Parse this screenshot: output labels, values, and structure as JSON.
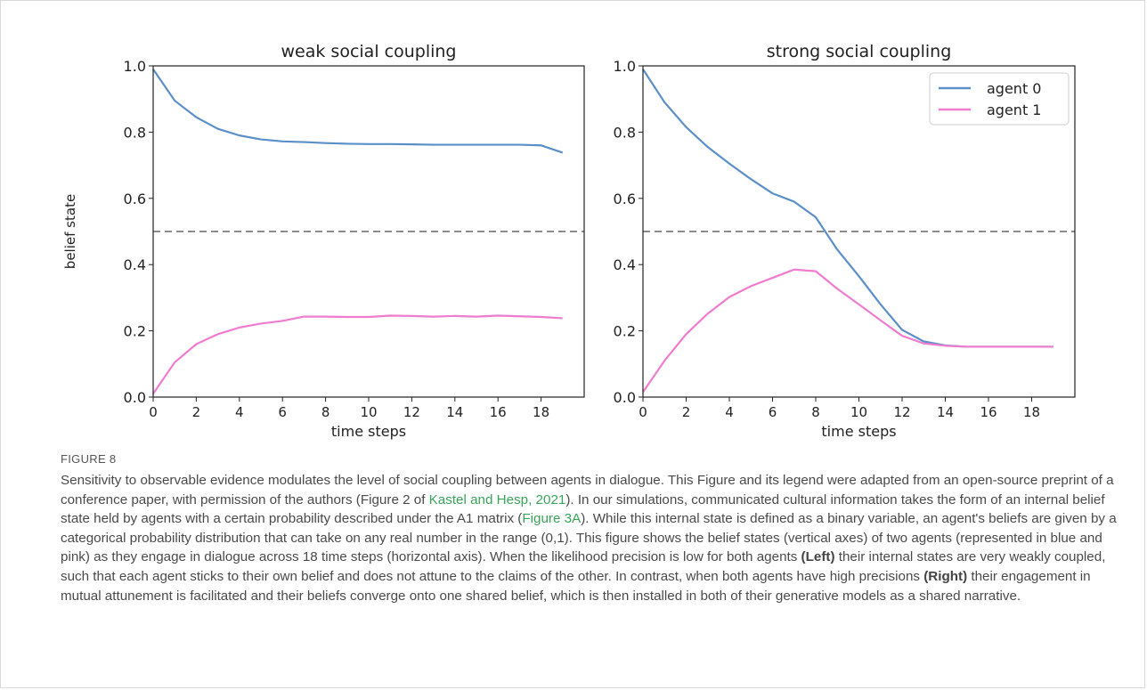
{
  "chart_data": [
    {
      "type": "line",
      "title": "weak social coupling",
      "xlabel": "time steps",
      "ylabel": "belief state",
      "xlim": [
        0,
        20
      ],
      "ylim": [
        0,
        1
      ],
      "xticks": [
        "0",
        "2",
        "4",
        "6",
        "8",
        "10",
        "12",
        "14",
        "16",
        "18"
      ],
      "yticks": [
        "0.0",
        "0.2",
        "0.4",
        "0.6",
        "0.8",
        "1.0"
      ],
      "reference_line": 0.5,
      "x": [
        0,
        1,
        2,
        3,
        4,
        5,
        6,
        7,
        8,
        9,
        10,
        11,
        12,
        13,
        14,
        15,
        16,
        17,
        18,
        19
      ],
      "series": [
        {
          "name": "agent 0",
          "color": "#5b8fc7",
          "values": [
            0.99,
            0.895,
            0.845,
            0.81,
            0.79,
            0.778,
            0.772,
            0.77,
            0.767,
            0.765,
            0.764,
            0.764,
            0.763,
            0.762,
            0.762,
            0.762,
            0.762,
            0.762,
            0.76,
            0.738
          ]
        },
        {
          "name": "agent 1",
          "color": "#f07ccf",
          "values": [
            0.01,
            0.105,
            0.16,
            0.19,
            0.21,
            0.222,
            0.23,
            0.243,
            0.243,
            0.242,
            0.242,
            0.246,
            0.245,
            0.243,
            0.245,
            0.243,
            0.246,
            0.244,
            0.242,
            0.238
          ]
        }
      ],
      "legend": false
    },
    {
      "type": "line",
      "title": "strong social coupling",
      "xlabel": "time steps",
      "ylabel": "",
      "xlim": [
        0,
        20
      ],
      "ylim": [
        0,
        1
      ],
      "xticks": [
        "0",
        "2",
        "4",
        "6",
        "8",
        "10",
        "12",
        "14",
        "16",
        "18"
      ],
      "yticks": [
        "0.0",
        "0.2",
        "0.4",
        "0.6",
        "0.8",
        "1.0"
      ],
      "reference_line": 0.5,
      "x": [
        0,
        1,
        2,
        3,
        4,
        5,
        6,
        7,
        8,
        9,
        10,
        11,
        12,
        13,
        14,
        15,
        16,
        17,
        18,
        19
      ],
      "series": [
        {
          "name": "agent 0",
          "color": "#5b8fc7",
          "values": [
            0.99,
            0.89,
            0.815,
            0.755,
            0.705,
            0.658,
            0.615,
            0.59,
            0.543,
            0.445,
            0.365,
            0.28,
            0.203,
            0.168,
            0.156,
            0.152,
            0.152,
            0.152,
            0.152,
            0.152
          ]
        },
        {
          "name": "agent 1",
          "color": "#f07ccf",
          "values": [
            0.015,
            0.11,
            0.19,
            0.252,
            0.302,
            0.335,
            0.36,
            0.385,
            0.38,
            0.327,
            0.28,
            0.232,
            0.185,
            0.162,
            0.155,
            0.152,
            0.152,
            0.152,
            0.152,
            0.152
          ]
        }
      ],
      "legend": true,
      "legend_position": "top-right"
    }
  ],
  "caption": {
    "label": "FIGURE 8",
    "p1": "Sensitivity to observable evidence modulates the level of social coupling between agents in dialogue. This Figure and its legend were adapted from an open-source preprint of a conference paper, with permission of the authors (Figure 2 of ",
    "ref1": "Kastel and Hesp, 2021",
    "p2": "). In our simulations, communicated cultural information takes the form of an internal belief state held by agents with a certain probability described under the A1 matrix (",
    "ref2": "Figure 3A",
    "p3": "). While this internal state is defined as a binary variable, an agent's beliefs are given by a categorical probability distribution that can take on any real number in the range (0,1). This figure shows the belief states (vertical axes) of two agents (represented in blue and pink) as they engage in dialogue across 18 time steps (horizontal axis). When the likelihood precision is low for both agents ",
    "left": "(Left)",
    "p4": " their internal states are very weakly coupled, such that each agent sticks to their own belief and does not attune to the claims of the other. In contrast, when both agents have high precisions ",
    "right": "(Right)",
    "p5": " their engagement in mutual attunement is facilitated and their beliefs converge onto one shared belief, which is then installed in both of their generative models as a shared narrative."
  }
}
